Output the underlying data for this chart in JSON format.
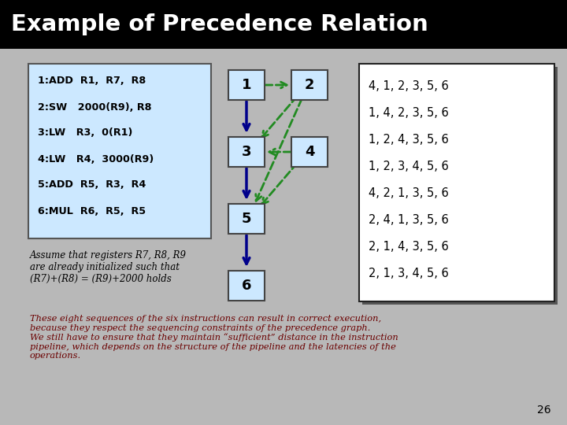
{
  "title": "Example of Precedence Relation",
  "title_bg": "#000000",
  "title_color": "#ffffff",
  "bg_color": "#c0c0c0",
  "content_bg": "#c0c0c0",
  "code_lines": [
    "1:ADD  R1,  R7,  R8",
    "2:SW   2000(R9), R8",
    "3:LW   R3,  0(R1)",
    "4:LW   R4,  3000(R9)",
    "5:ADD  R5,  R3,  R4",
    "6:MUL  R6,  R5,  R5"
  ],
  "code_box_color": "#cce8ff",
  "code_box_edge": "#555555",
  "assume_text": "Assume that registers R7, R8, R9\nare already initialized such that\n(R7)+(R8) = (R9)+2000 holds",
  "node_box_color": "#cce8ff",
  "node_box_edge": "#444444",
  "solid_edge_color": "#00008b",
  "dashed_edge_color": "#228B22",
  "sequences_lines": [
    "4, 1, 2, 3, 5, 6",
    "1, 4, 2, 3, 5, 6",
    "1, 2, 4, 3, 5, 6",
    "1, 2, 3, 4, 5, 6",
    "4, 2, 1, 3, 5, 6",
    "2, 4, 1, 3, 5, 6",
    "2, 1, 4, 3, 5, 6",
    "2, 1, 3, 4, 5, 6"
  ],
  "seq_box_color": "#ffffff",
  "seq_box_edge": "#222222",
  "bottom_text": "These eight sequences of the six instructions can result in correct execution,\nbecause they respect the sequencing constraints of the precedence graph.\nWe still have to ensure that they maintain “sufficient” distance in the instruction\npipeline, which depends on the structure of the pipeline and the latencies of the\noperations.",
  "bottom_text_color": "#6B0000",
  "page_num": "26"
}
